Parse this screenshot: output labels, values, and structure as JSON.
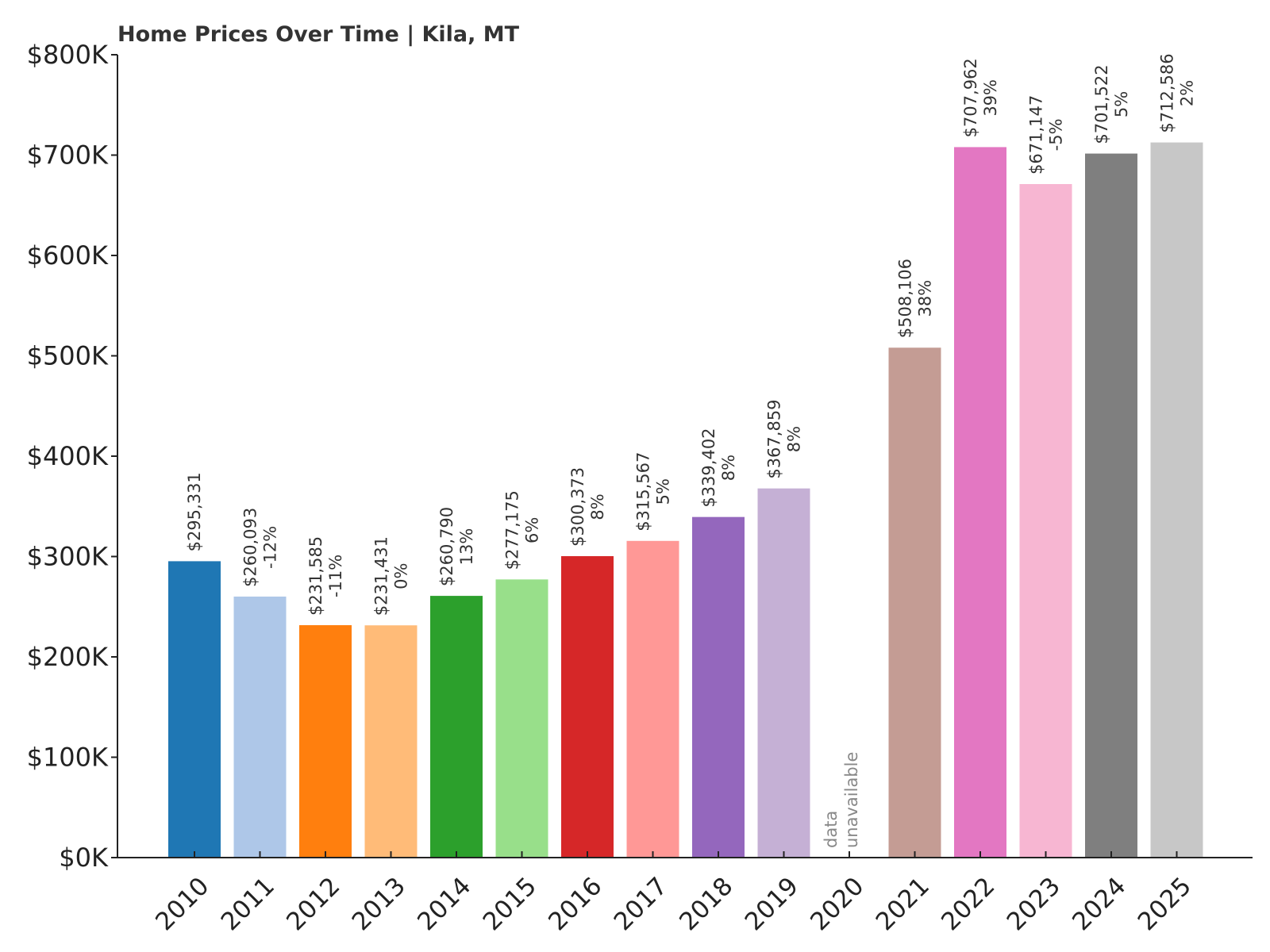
{
  "chart_data": {
    "type": "bar",
    "title": "Home Prices Over Time | Kila, MT",
    "xlabel": "",
    "ylabel": "",
    "ylim": [
      0,
      800000
    ],
    "y_ticks": [
      0,
      100000,
      200000,
      300000,
      400000,
      500000,
      600000,
      700000,
      800000
    ],
    "y_tick_labels": [
      "$0K",
      "$100K",
      "$200K",
      "$300K",
      "$400K",
      "$500K",
      "$600K",
      "$700K",
      "$800K"
    ],
    "grid": false,
    "legend": "none",
    "categories": [
      "2010",
      "2011",
      "2012",
      "2013",
      "2014",
      "2015",
      "2016",
      "2017",
      "2018",
      "2019",
      "2020",
      "2021",
      "2022",
      "2023",
      "2024",
      "2025"
    ],
    "values": [
      295331,
      260093,
      231585,
      231431,
      260790,
      277175,
      300373,
      315567,
      339402,
      367859,
      null,
      508106,
      707962,
      671147,
      701522,
      712586
    ],
    "value_labels": [
      "$295,331",
      "$260,093",
      "$231,585",
      "$231,431",
      "$260,790",
      "$277,175",
      "$300,373",
      "$315,567",
      "$339,402",
      "$367,859",
      "",
      "$508,106",
      "$707,962",
      "$671,147",
      "$701,522",
      "$712,586"
    ],
    "change_labels": [
      "",
      "-12%",
      "-11%",
      "0%",
      "13%",
      "6%",
      "8%",
      "5%",
      "8%",
      "8%",
      "",
      "38%",
      "39%",
      "-5%",
      "5%",
      "2%"
    ],
    "missing_label": [
      "data",
      "unavailable"
    ],
    "colors": [
      "#1f77b4",
      "#aec7e8",
      "#ff7f0e",
      "#ffbb78",
      "#2ca02c",
      "#98df8a",
      "#d62728",
      "#ff9896",
      "#9467bd",
      "#c5b0d5",
      "#8c564b",
      "#c49c94",
      "#e377c2",
      "#f7b6d2",
      "#7f7f7f",
      "#c7c7c7"
    ]
  }
}
